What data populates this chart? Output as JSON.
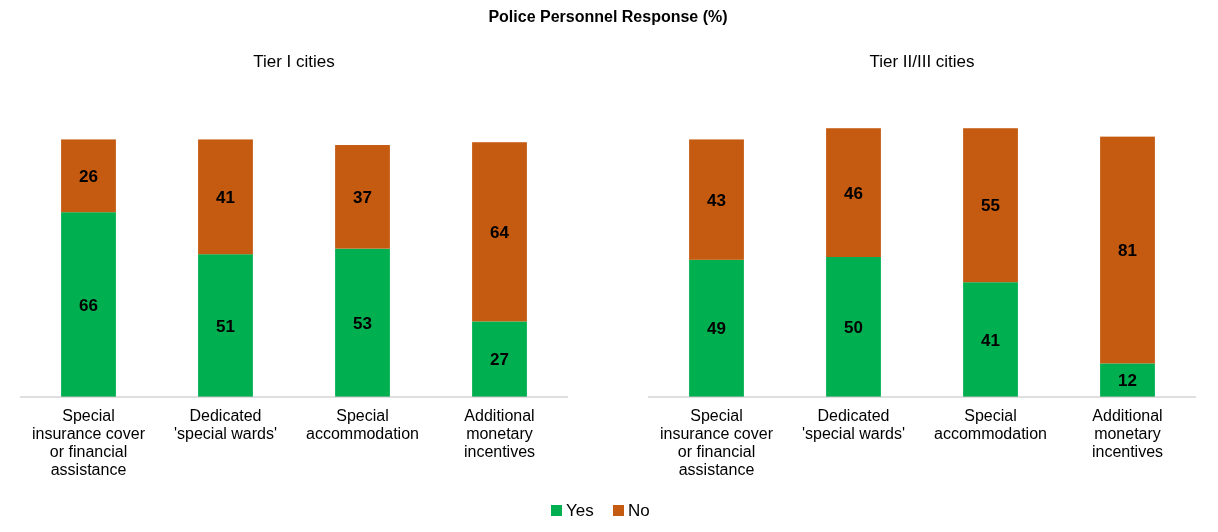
{
  "chart_data": [
    {
      "type": "bar",
      "title": "Police Personnel Response (%)",
      "subtitle": "Tier I cities",
      "stacked": true,
      "data_labels": true,
      "categories": [
        "Special insurance cover or financial assistance",
        "Dedicated 'special wards'",
        "Special accommodation",
        "Additional monetary incentives"
      ],
      "series": [
        {
          "color": "#00b050",
          "values": [
            66,
            51,
            53,
            27
          ]
        },
        {
          "color": "#c55a11",
          "values": [
            26,
            41,
            37,
            64
          ]
        }
      ]
    },
    {
      "type": "bar",
      "subtitle": "Tier II/III cities",
      "stacked": true,
      "data_labels": true,
      "legend": "bottom",
      "categories": [
        "Special insurance cover or financial assistance",
        "Dedicated 'special wards'",
        "Special accommodation",
        "Additional monetary incentives"
      ],
      "series": [
        {
          "name": "Yes",
          "color": "#00b050",
          "values": [
            49,
            50,
            41,
            12
          ]
        },
        {
          "name": "No",
          "color": "#c55a11",
          "values": [
            43,
            46,
            55,
            81
          ]
        }
      ]
    }
  ]
}
